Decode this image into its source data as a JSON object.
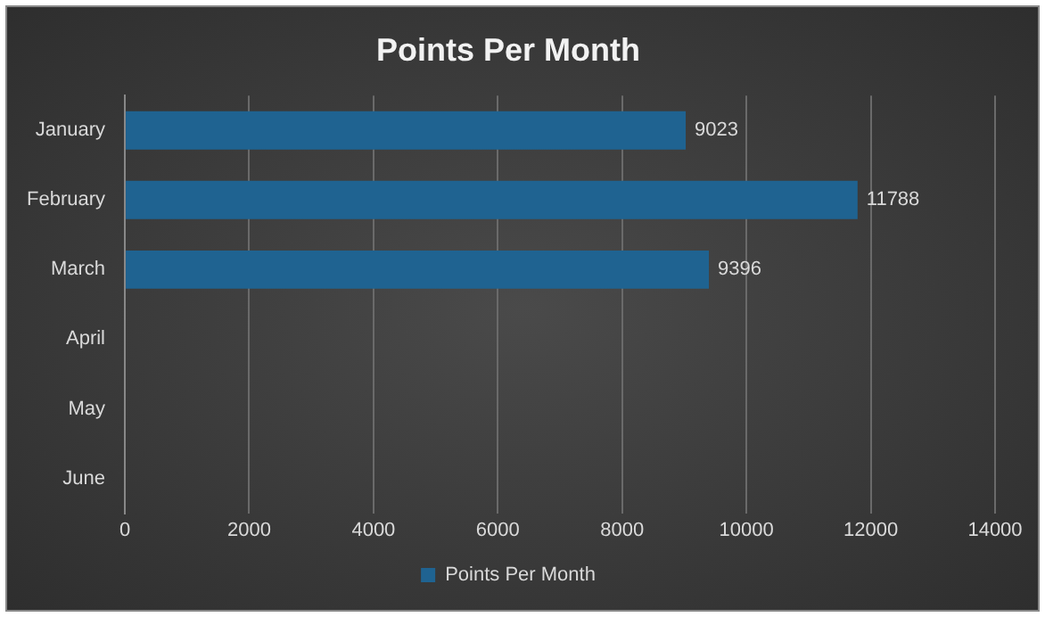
{
  "chart_data": {
    "type": "bar",
    "orientation": "horizontal",
    "title": "Points Per Month",
    "categories": [
      "January",
      "February",
      "March",
      "April",
      "May",
      "June"
    ],
    "series": [
      {
        "name": "Points Per Month",
        "color": "#1f6391",
        "values": [
          9023,
          11788,
          9396,
          null,
          null,
          null
        ]
      }
    ],
    "xlim": [
      0,
      14000
    ],
    "xticks": [
      0,
      2000,
      4000,
      6000,
      8000,
      10000,
      12000,
      14000
    ],
    "grid": "x",
    "legend": "bottom",
    "data_labels": true
  }
}
